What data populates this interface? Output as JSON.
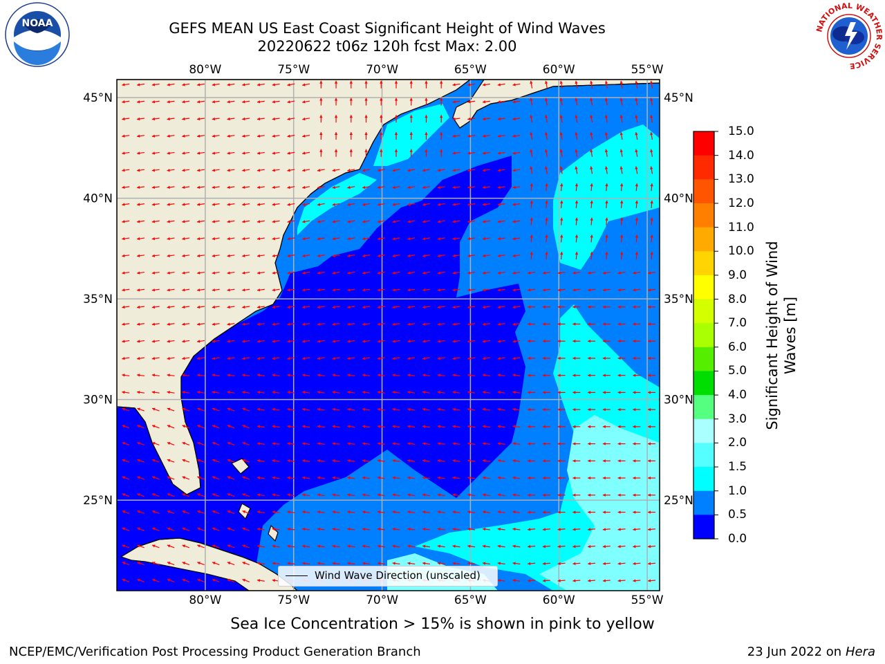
{
  "title": {
    "line1": "GEFS MEAN US East Coast Significant Height of Wind Waves",
    "line2": "20220622 t06z 120h fcst   Max: 2.00"
  },
  "map": {
    "longitude_labels": [
      "80°W",
      "75°W",
      "70°W",
      "65°W",
      "60°W",
      "55°W"
    ],
    "latitude_labels": [
      "45°N",
      "40°N",
      "35°N",
      "30°N",
      "25°N"
    ],
    "extent": {
      "lon_min": -85,
      "lon_max": -54.3,
      "lat_min": 20.5,
      "lat_max": 45.9
    },
    "legend": "Wind Wave Direction (unscaled)",
    "colors": {
      "land": "#efecd9",
      "gridline": "#b0b0b0",
      "coast": "#000000",
      "arrow": "#ff0000"
    },
    "wave_height_regions": [
      {
        "name": "0.0-0.5 m",
        "color": "#0000ff"
      },
      {
        "name": "0.5-1.0 m",
        "color": "#0080ff"
      },
      {
        "name": "1.0-1.5 m",
        "color": "#00ffff"
      },
      {
        "name": "1.5-2.0 m",
        "color": "#7fffff"
      }
    ]
  },
  "colorbar": {
    "title": "Significant Height of Wind Waves [m]",
    "ticks": [
      "15.0",
      "14.0",
      "13.0",
      "12.0",
      "11.0",
      "10.0",
      "9.0",
      "8.0",
      "7.0",
      "6.0",
      "5.0",
      "4.0",
      "3.0",
      "2.0",
      "1.5",
      "1.0",
      "0.5",
      "0.0"
    ],
    "colors_top_to_bottom": [
      "#ff0000",
      "#ff2a00",
      "#ff5500",
      "#ff7f00",
      "#ffaa00",
      "#ffd400",
      "#ffff00",
      "#d4ff00",
      "#aaff00",
      "#55ee00",
      "#00dd00",
      "#55ff80",
      "#aaffff",
      "#55ffff",
      "#00ffff",
      "#0080ff",
      "#0000ff"
    ]
  },
  "logos": {
    "noaa": "NOAA",
    "nws_ring_text": "NATIONAL WEATHER SERVICE"
  },
  "footer": {
    "sea_ice_note": "Sea Ice Concentration > 15% is shown in pink to yellow",
    "credit": "NCEP/EMC/Verification Post Processing Product Generation Branch",
    "date": "23 Jun 2022 on",
    "machine": "Hera"
  }
}
